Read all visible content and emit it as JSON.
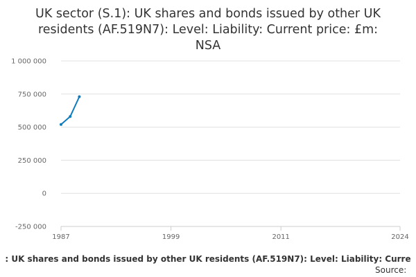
{
  "chart_data": {
    "type": "line",
    "title": "UK sector (S.1): UK shares and bonds issued by other UK residents (AF.519N7): Level: Liability: Current price: £m: NSA",
    "title_lines": [
      "UK sector (S.1): UK shares and bonds issued by other UK",
      "residents (AF.519N7): Level: Liability: Current price: £m:",
      "NSA"
    ],
    "xlabel": "",
    "ylabel": "",
    "x_ticks": [
      "1987",
      "1999",
      "2011",
      "2024"
    ],
    "y_ticks": [
      "1 000 000",
      "750 000",
      "500 000",
      "250 000",
      "0",
      "-250 000"
    ],
    "xlim": [
      1987,
      2024
    ],
    "ylim": [
      -250000,
      1000000
    ],
    "grid": "horizontal",
    "legend": "none",
    "series": [
      {
        "color": "#0f7bbf",
        "points": [
          {
            "x": 1987,
            "y": 520000
          },
          {
            "x": 1988,
            "y": 580000
          },
          {
            "x": 1989,
            "y": 730000
          }
        ]
      }
    ],
    "caption": ": UK shares and bonds issued by other UK residents (AF.519N7): Level: Liability: Curre",
    "source_label": "Source:"
  },
  "colors": {
    "line": "#0f7bbf",
    "grid": "#e0e0e0",
    "axis": "#cccccc",
    "text": "#333333",
    "tick_text": "#666666"
  }
}
